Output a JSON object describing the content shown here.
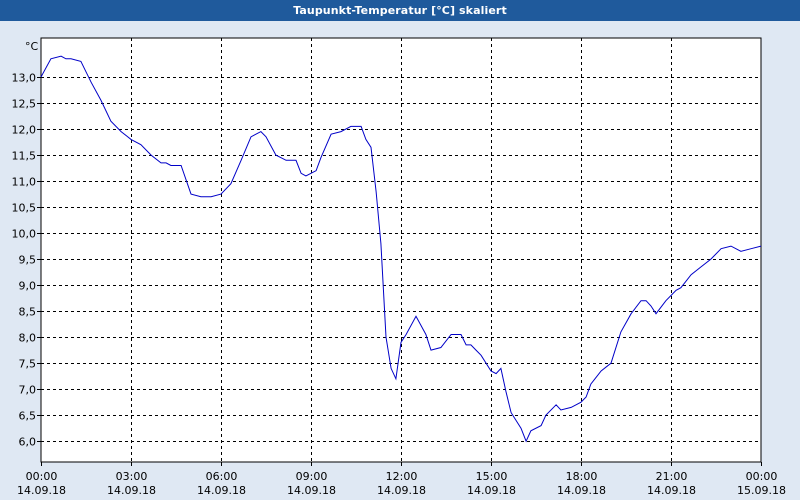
{
  "window": {
    "title": "Taupunkt-Temperatur [°C] skaliert"
  },
  "chart_data": {
    "type": "line",
    "title": "Taupunkt-Temperatur [°C] skaliert",
    "ylabel": "°C",
    "xlabel": "",
    "ylim": [
      5.6,
      13.75
    ],
    "xlim": [
      0,
      24
    ],
    "grid": true,
    "line_color": "#0000c8",
    "y_ticks": [
      {
        "v": 13.0,
        "label": "13,0"
      },
      {
        "v": 12.5,
        "label": "12,5"
      },
      {
        "v": 12.0,
        "label": "12,0"
      },
      {
        "v": 11.5,
        "label": "11,5"
      },
      {
        "v": 11.0,
        "label": "11,0"
      },
      {
        "v": 10.5,
        "label": "10,5"
      },
      {
        "v": 10.0,
        "label": "10,0"
      },
      {
        "v": 9.5,
        "label": "9,5"
      },
      {
        "v": 9.0,
        "label": "9,0"
      },
      {
        "v": 8.5,
        "label": "8,5"
      },
      {
        "v": 8.0,
        "label": "8,0"
      },
      {
        "v": 7.5,
        "label": "7,5"
      },
      {
        "v": 7.0,
        "label": "7,0"
      },
      {
        "v": 6.5,
        "label": "6,5"
      },
      {
        "v": 6.0,
        "label": "6,0"
      }
    ],
    "x_ticks": [
      {
        "h": 0,
        "time": "00:00",
        "date": "14.09.18"
      },
      {
        "h": 3,
        "time": "03:00",
        "date": "14.09.18"
      },
      {
        "h": 6,
        "time": "06:00",
        "date": "14.09.18"
      },
      {
        "h": 9,
        "time": "09:00",
        "date": "14.09.18"
      },
      {
        "h": 12,
        "time": "12:00",
        "date": "14.09.18"
      },
      {
        "h": 15,
        "time": "15:00",
        "date": "14.09.18"
      },
      {
        "h": 18,
        "time": "18:00",
        "date": "14.09.18"
      },
      {
        "h": 21,
        "time": "21:00",
        "date": "14.09.18"
      },
      {
        "h": 24,
        "time": "00:00",
        "date": "15.09.18"
      }
    ],
    "series": [
      {
        "x": [
          0.0,
          0.33,
          0.67,
          0.83,
          1.0,
          1.33,
          1.5,
          1.67,
          2.0,
          2.33,
          2.67,
          3.0,
          3.33,
          3.67,
          4.0,
          4.17,
          4.33,
          4.67,
          5.0,
          5.33,
          5.67,
          6.0,
          6.33,
          6.67,
          7.0,
          7.33,
          7.5,
          7.83,
          8.17,
          8.5,
          8.67,
          8.83,
          9.17,
          9.33,
          9.67,
          10.0,
          10.33,
          10.67,
          10.83,
          11.0,
          11.17,
          11.33,
          11.5,
          11.67,
          11.83,
          12.0,
          12.17,
          12.5,
          12.83,
          13.0,
          13.33,
          13.67,
          14.0,
          14.17,
          14.33,
          14.5,
          14.67,
          15.0,
          15.17,
          15.33,
          15.5,
          15.67,
          16.0,
          16.17,
          16.33,
          16.67,
          16.83,
          17.17,
          17.33,
          17.67,
          18.0,
          18.17,
          18.33,
          18.67,
          19.0,
          19.33,
          19.67,
          20.0,
          20.17,
          20.33,
          20.5,
          20.83,
          21.17,
          21.33,
          21.67,
          22.0,
          22.33,
          22.67,
          23.0,
          23.33,
          23.67,
          24.0
        ],
        "values": [
          13.0,
          13.35,
          13.4,
          13.35,
          13.35,
          13.3,
          13.1,
          12.9,
          12.55,
          12.15,
          11.95,
          11.8,
          11.7,
          11.5,
          11.35,
          11.35,
          11.3,
          11.3,
          10.75,
          10.7,
          10.7,
          10.75,
          10.95,
          11.4,
          11.85,
          11.95,
          11.85,
          11.5,
          11.4,
          11.4,
          11.15,
          11.1,
          11.2,
          11.45,
          11.9,
          11.95,
          12.05,
          12.05,
          11.8,
          11.65,
          10.8,
          9.8,
          8.0,
          7.4,
          7.2,
          7.9,
          8.05,
          8.4,
          8.05,
          7.75,
          7.8,
          8.05,
          8.05,
          7.85,
          7.85,
          7.75,
          7.65,
          7.35,
          7.3,
          7.4,
          6.95,
          6.55,
          6.25,
          6.0,
          6.2,
          6.3,
          6.5,
          6.7,
          6.6,
          6.65,
          6.75,
          6.85,
          7.1,
          7.35,
          7.5,
          8.1,
          8.45,
          8.7,
          8.7,
          8.6,
          8.45,
          8.7,
          8.9,
          8.95,
          9.2,
          9.35,
          9.5,
          9.7,
          9.75,
          9.65,
          9.7,
          9.75
        ]
      }
    ]
  }
}
